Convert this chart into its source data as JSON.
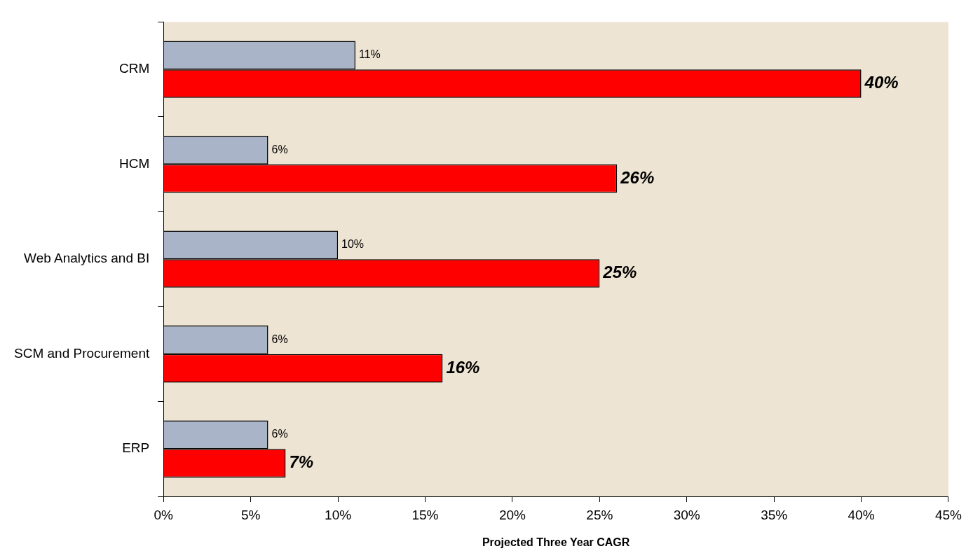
{
  "chart_data": {
    "type": "bar",
    "orientation": "horizontal",
    "xlabel": "Projected Three Year CAGR",
    "categories": [
      "CRM",
      "HCM",
      "Web Analytics and BI",
      "SCM and Procurement",
      "ERP"
    ],
    "series": [
      {
        "color": "#aab4c8",
        "values": [
          11,
          6,
          10,
          6,
          6
        ],
        "value_labels": [
          "11%",
          "6%",
          "10%",
          "6%",
          "6%"
        ]
      },
      {
        "color": "#ff0000",
        "values": [
          40,
          26,
          25,
          16,
          7
        ],
        "value_labels": [
          "40%",
          "26%",
          "25%",
          "16%",
          "7%"
        ]
      }
    ],
    "xlim": [
      0,
      45
    ],
    "xticks": [
      {
        "value": 0,
        "label": "0%"
      },
      {
        "value": 5,
        "label": "5%"
      },
      {
        "value": 10,
        "label": "10%"
      },
      {
        "value": 15,
        "label": "15%"
      },
      {
        "value": 20,
        "label": "20%"
      },
      {
        "value": 25,
        "label": "25%"
      },
      {
        "value": 30,
        "label": "30%"
      },
      {
        "value": 35,
        "label": "35%"
      },
      {
        "value": 40,
        "label": "40%"
      },
      {
        "value": 45,
        "label": "45%"
      }
    ],
    "legend": false
  }
}
